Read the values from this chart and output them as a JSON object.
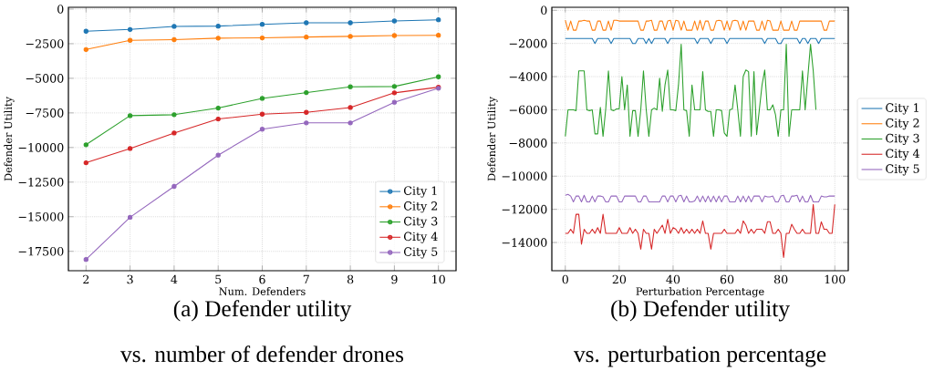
{
  "chart_data": [
    {
      "type": "line",
      "xlabel": "Num. Defenders",
      "ylabel": "Defender Utility",
      "annotations": [
        "(a) Defender utility",
        "vs. number of defender drones"
      ],
      "x": [
        2,
        3,
        4,
        5,
        6,
        7,
        8,
        9,
        10
      ],
      "xlim": [
        1.6,
        10.4
      ],
      "ylim": [
        -18900,
        130
      ],
      "xticks": [
        2,
        3,
        4,
        5,
        6,
        7,
        8,
        9,
        10
      ],
      "yticks": [
        {
          "value": -17500,
          "label": "−17500"
        },
        {
          "value": -15000,
          "label": "−15000"
        },
        {
          "value": -12500,
          "label": "−12500"
        },
        {
          "value": -10000,
          "label": "−10000"
        },
        {
          "value": -7500,
          "label": "−7500"
        },
        {
          "value": -5000,
          "label": "−5000"
        },
        {
          "value": -2500,
          "label": "−2500"
        },
        0
      ],
      "grid": true,
      "legend": "bottom right",
      "marker": "circle",
      "line_style": "solid",
      "series": [
        {
          "name": "City 1",
          "color": "#1f77b4",
          "values": [
            -1600,
            -1470,
            -1250,
            -1230,
            -1100,
            -990,
            -990,
            -860,
            -770
          ]
        },
        {
          "name": "City 2",
          "color": "#ff7f0e",
          "values": [
            -2920,
            -2260,
            -2210,
            -2100,
            -2080,
            -2020,
            -1970,
            -1910,
            -1890
          ]
        },
        {
          "name": "City 3",
          "color": "#2ca02c",
          "values": [
            -9800,
            -7700,
            -7630,
            -7150,
            -6450,
            -6030,
            -5610,
            -5590,
            -4890
          ]
        },
        {
          "name": "City 4",
          "color": "#d62728",
          "values": [
            -11100,
            -10070,
            -8950,
            -7940,
            -7590,
            -7460,
            -7110,
            -6050,
            -5640
          ]
        },
        {
          "name": "City 5",
          "color": "#9467bd",
          "values": [
            -18090,
            -15040,
            -12810,
            -10550,
            -8680,
            -8220,
            -8220,
            -6730,
            -5720
          ]
        }
      ]
    },
    {
      "type": "line",
      "xlabel": "Perturbation Percentage",
      "ylabel": "Defender Utility",
      "annotations": [
        "(b) Defender utility",
        "vs. perturbation percentage"
      ],
      "x": [
        0,
        1,
        2,
        3,
        4,
        5,
        6,
        7,
        8,
        9,
        10,
        11,
        12,
        13,
        14,
        15,
        16,
        17,
        18,
        19,
        20,
        21,
        22,
        23,
        24,
        25,
        26,
        27,
        28,
        29,
        30,
        31,
        32,
        33,
        34,
        35,
        36,
        37,
        38,
        39,
        40,
        41,
        42,
        43,
        44,
        45,
        46,
        47,
        48,
        49,
        50,
        51,
        52,
        53,
        54,
        55,
        56,
        57,
        58,
        59,
        60,
        61,
        62,
        63,
        64,
        65,
        66,
        67,
        68,
        69,
        70,
        71,
        72,
        73,
        74,
        75,
        76,
        77,
        78,
        79,
        80,
        81,
        82,
        83,
        84,
        85,
        86,
        87,
        88,
        89,
        90,
        91,
        92,
        93,
        94,
        95,
        96,
        97,
        98,
        99,
        100
      ],
      "xlim": [
        -5,
        105
      ],
      "ylim": [
        -15700,
        180
      ],
      "xticks": [
        0,
        20,
        40,
        60,
        80,
        100
      ],
      "yticks": [
        {
          "value": -14000,
          "label": "−14000"
        },
        {
          "value": -12000,
          "label": "−12000"
        },
        {
          "value": -10000,
          "label": "−10000"
        },
        {
          "value": -8000,
          "label": "−8000"
        },
        {
          "value": -6000,
          "label": "−6000"
        },
        {
          "value": -4000,
          "label": "−4000"
        },
        {
          "value": -2000,
          "label": "−2000"
        },
        0
      ],
      "grid": true,
      "legend": "right",
      "marker": "none",
      "line_style": "solid",
      "series": [
        {
          "name": "City 1",
          "color": "#1f77b4",
          "values": [
            -1700,
            -1700,
            -1700,
            -1700,
            -1700,
            -1700,
            -1700,
            -1700,
            -1700,
            -1700,
            -1700,
            -2000,
            -1700,
            -1700,
            -1700,
            -1700,
            -1700,
            -2000,
            -1700,
            -1700,
            -1700,
            -1700,
            -1700,
            -1700,
            -1700,
            -2000,
            -2000,
            -1700,
            -1700,
            -1700,
            -2000,
            -1700,
            -2000,
            -1700,
            -1700,
            -1700,
            -1700,
            -1700,
            -2000,
            -1700,
            -1700,
            -1700,
            -1700,
            -1700,
            -1700,
            -1700,
            -1700,
            -1700,
            -1700,
            -2000,
            -1700,
            -1700,
            -1700,
            -1700,
            -2000,
            -1700,
            -1700,
            -1700,
            -1700,
            -1700,
            -2000,
            -1700,
            -1700,
            -1700,
            -1700,
            -1700,
            -1700,
            -1700,
            -1700,
            -1700,
            -1700,
            -1700,
            -1700,
            -1700,
            -2000,
            -1700,
            -1700,
            -1700,
            -1700,
            -2000,
            -2000,
            -1700,
            -1700,
            -1700,
            -1700,
            -1700,
            -1700,
            -2000,
            -1700,
            -1700,
            -2000,
            -1700,
            -1700,
            -1700,
            -2000,
            -1700,
            -1700,
            -1700,
            -1700,
            -1700,
            -1700
          ]
        },
        {
          "name": "City 2",
          "color": "#ff7f0e",
          "values": [
            -600,
            -1200,
            -650,
            -1200,
            -1200,
            -650,
            -650,
            -600,
            -650,
            -650,
            -1200,
            -1200,
            -650,
            -650,
            -1200,
            -1200,
            -650,
            -1200,
            -600,
            -600,
            -650,
            -650,
            -650,
            -650,
            -650,
            -650,
            -650,
            -650,
            -1200,
            -1200,
            -650,
            -650,
            -600,
            -1200,
            -1200,
            -650,
            -650,
            -1200,
            -650,
            -600,
            -1200,
            -600,
            -650,
            -1200,
            -650,
            -1200,
            -1200,
            -1200,
            -650,
            -1200,
            -600,
            -1200,
            -650,
            -650,
            -1200,
            -1200,
            -650,
            -600,
            -650,
            -1200,
            -650,
            -1200,
            -650,
            -600,
            -650,
            -1200,
            -650,
            -1200,
            -650,
            -650,
            -650,
            -1200,
            -1200,
            -650,
            -1200,
            -600,
            -650,
            -1200,
            -1200,
            -1200,
            -650,
            -1200,
            -1200,
            -1200,
            -650,
            -1200,
            -1200,
            -650,
            -650,
            -650,
            -650,
            -650,
            -650,
            -650,
            -650,
            -650,
            -1200,
            -1200,
            -650,
            -650,
            -650
          ]
        },
        {
          "name": "City 3",
          "color": "#2ca02c",
          "values": [
            -7600,
            -6000,
            -6000,
            -6000,
            -6050,
            -3650,
            -3650,
            -3650,
            -6000,
            -6050,
            -6000,
            -7450,
            -7450,
            -5850,
            -7600,
            -5950,
            -3650,
            -6000,
            -6050,
            -5950,
            -5950,
            -4000,
            -6000,
            -4500,
            -7600,
            -6050,
            -6050,
            -7600,
            -6000,
            -3650,
            -5950,
            -7600,
            -6000,
            -5900,
            -6000,
            -4100,
            -6100,
            -4500,
            -3600,
            -6000,
            -6000,
            -6050,
            -4500,
            -2050,
            -6000,
            -6050,
            -7600,
            -4500,
            -6000,
            -6000,
            -6000,
            -3700,
            -6000,
            -6100,
            -6100,
            -7600,
            -6000,
            -6000,
            -6050,
            -7400,
            -7600,
            -6000,
            -5950,
            -4500,
            -6000,
            -7600,
            -4000,
            -3600,
            -3700,
            -7600,
            -3700,
            -7500,
            -6000,
            -4500,
            -3600,
            -6000,
            -6000,
            -5700,
            -6300,
            -7600,
            -6000,
            -6000,
            -2050,
            -7600,
            -6000,
            -6000,
            -6000,
            -6000,
            -3650,
            -6000,
            -4000,
            -2050,
            -3650,
            -6000,
            null,
            null,
            null,
            null,
            null,
            null,
            null
          ]
        },
        {
          "name": "City 4",
          "color": "#d62728",
          "values": [
            -13450,
            -13450,
            -13200,
            -13450,
            -12300,
            -12300,
            -14100,
            -13200,
            -13450,
            -13450,
            -13200,
            -13450,
            -13100,
            -13450,
            -12300,
            -13450,
            -13450,
            -13450,
            -13450,
            -13450,
            -13100,
            -13450,
            -13450,
            -13450,
            -13100,
            -13450,
            -13200,
            -13450,
            -14400,
            -13200,
            -13450,
            -13450,
            -14400,
            -13200,
            -13450,
            -13200,
            -12950,
            -13450,
            -12600,
            -13450,
            -13100,
            -13200,
            -13450,
            -13100,
            -13450,
            -13200,
            -13450,
            -13200,
            -13450,
            -13200,
            -13450,
            -12700,
            -13450,
            -13450,
            -14400,
            -13450,
            -13450,
            -13450,
            -13450,
            -13200,
            -13450,
            -13450,
            -13450,
            -13450,
            -13200,
            -13450,
            -12700,
            -12950,
            -13450,
            -13200,
            -13450,
            -13200,
            -13200,
            -13200,
            -13450,
            -12750,
            -12750,
            -13450,
            -13450,
            -13200,
            -13450,
            -14900,
            -13450,
            -13450,
            -12900,
            -13200,
            -13450,
            -13450,
            -13200,
            -13450,
            -13450,
            -13450,
            -11700,
            -13450,
            -13450,
            -12750,
            -13200,
            -13200,
            -13450,
            -13450,
            -11700
          ]
        },
        {
          "name": "City 5",
          "color": "#9467bd",
          "values": [
            -11150,
            -11100,
            -11200,
            -11550,
            -11200,
            -11200,
            -11550,
            -11150,
            -11550,
            -11550,
            -11200,
            -11550,
            -11200,
            -11200,
            -11250,
            -11550,
            -11550,
            -11200,
            -11200,
            -11200,
            -11550,
            -11550,
            -11200,
            -11200,
            -11200,
            -11200,
            -11200,
            -11550,
            -11550,
            -11200,
            -11200,
            -11550,
            -11550,
            -11550,
            -11550,
            -11550,
            -11200,
            -11200,
            -11550,
            -11200,
            -11200,
            -11550,
            -11200,
            -11150,
            -11550,
            -11200,
            -11550,
            -11550,
            -11500,
            -11200,
            -11550,
            -11200,
            -11550,
            -11200,
            -11550,
            -11200,
            -11550,
            -11200,
            -11550,
            -11200,
            -11200,
            -11550,
            -11550,
            -11550,
            -11200,
            -11550,
            -11200,
            -11550,
            -11200,
            -11550,
            -11200,
            -11200,
            -11200,
            -11550,
            -11200,
            -11250,
            -11250,
            -11200,
            -11550,
            -11550,
            -11200,
            -11150,
            -11550,
            -11550,
            -11200,
            -11200,
            -11150,
            -11550,
            -11200,
            -11550,
            -11550,
            -11150,
            -11550,
            -11550,
            -11550,
            -11200,
            -11250,
            -11250,
            -11200,
            -11200,
            -11200
          ]
        }
      ]
    }
  ]
}
